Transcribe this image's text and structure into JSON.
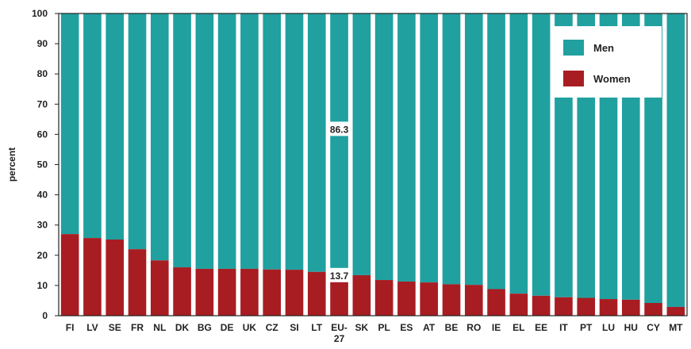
{
  "chart_data": {
    "type": "bar",
    "stacked": true,
    "ylabel": "percent",
    "ylim": [
      0,
      100
    ],
    "yticks": [
      0,
      10,
      20,
      30,
      40,
      50,
      60,
      70,
      80,
      90,
      100
    ],
    "grid": false,
    "legend_position": "top-right",
    "categories": [
      "FI",
      "LV",
      "SE",
      "FR",
      "NL",
      "DK",
      "BG",
      "DE",
      "UK",
      "CZ",
      "SI",
      "LT",
      "EU-27",
      "SK",
      "PL",
      "ES",
      "AT",
      "BE",
      "RO",
      "IE",
      "EL",
      "EE",
      "IT",
      "PT",
      "LU",
      "HU",
      "CY",
      "MT"
    ],
    "series": [
      {
        "name": "Women",
        "color": "#a81d22",
        "values": [
          27.0,
          25.7,
          25.2,
          22.0,
          18.3,
          16.0,
          15.5,
          15.5,
          15.5,
          15.3,
          15.2,
          14.5,
          13.7,
          13.4,
          11.8,
          11.3,
          11.0,
          10.4,
          10.2,
          8.8,
          7.3,
          6.6,
          6.1,
          5.9,
          5.5,
          5.3,
          4.2,
          2.9
        ]
      },
      {
        "name": "Men",
        "color": "#21a0a0",
        "values": [
          73.0,
          74.3,
          74.8,
          78.0,
          81.7,
          84.0,
          84.5,
          84.5,
          84.5,
          84.7,
          84.8,
          85.5,
          86.3,
          86.6,
          88.2,
          88.7,
          89.0,
          89.6,
          89.8,
          91.2,
          92.7,
          93.4,
          93.9,
          94.1,
          94.5,
          94.7,
          95.8,
          97.1
        ]
      }
    ],
    "data_labels": [
      {
        "category": "EU-27",
        "series": "Men",
        "text": "86.3",
        "value": 86.3
      },
      {
        "category": "EU-27",
        "series": "Women",
        "text": "13.7",
        "value": 13.7
      }
    ]
  }
}
